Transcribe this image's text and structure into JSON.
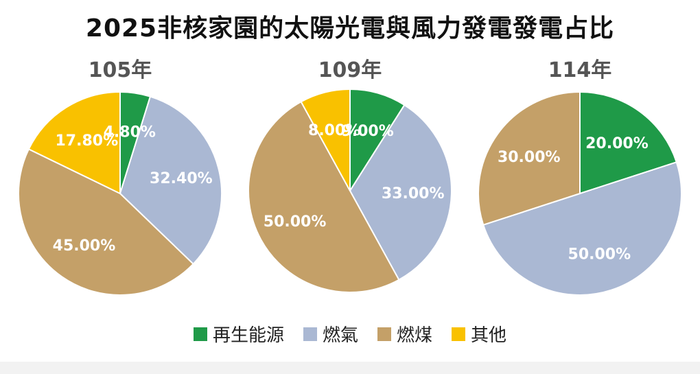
{
  "title": "2025非核家園的太陽光電與風力發電發電占比",
  "colors": {
    "renewable": "#1f9a48",
    "gas": "#aab8d3",
    "coal": "#c4a068",
    "other": "#f9c100"
  },
  "legend": [
    {
      "key": "renewable",
      "label": "再生能源"
    },
    {
      "key": "gas",
      "label": "燃氣"
    },
    {
      "key": "coal",
      "label": "燃煤"
    },
    {
      "key": "other",
      "label": "其他"
    }
  ],
  "chart_data": [
    {
      "type": "pie",
      "title": "105年",
      "slices": [
        {
          "key": "renewable",
          "label": "4.80%",
          "value": 4.8
        },
        {
          "key": "gas",
          "label": "32.40%",
          "value": 32.4
        },
        {
          "key": "coal",
          "label": "45.00%",
          "value": 45.0
        },
        {
          "key": "other",
          "label": "17.80%",
          "value": 17.8
        }
      ]
    },
    {
      "type": "pie",
      "title": "109年",
      "slices": [
        {
          "key": "renewable",
          "label": "9.00%",
          "value": 9.0
        },
        {
          "key": "gas",
          "label": "33.00%",
          "value": 33.0
        },
        {
          "key": "coal",
          "label": "50.00%",
          "value": 50.0
        },
        {
          "key": "other",
          "label": "8.00%",
          "value": 8.0
        }
      ]
    },
    {
      "type": "pie",
      "title": "114年",
      "slices": [
        {
          "key": "renewable",
          "label": "20.00%",
          "value": 20.0
        },
        {
          "key": "gas",
          "label": "50.00%",
          "value": 50.0
        },
        {
          "key": "coal",
          "label": "30.00%",
          "value": 30.0
        }
      ]
    }
  ]
}
